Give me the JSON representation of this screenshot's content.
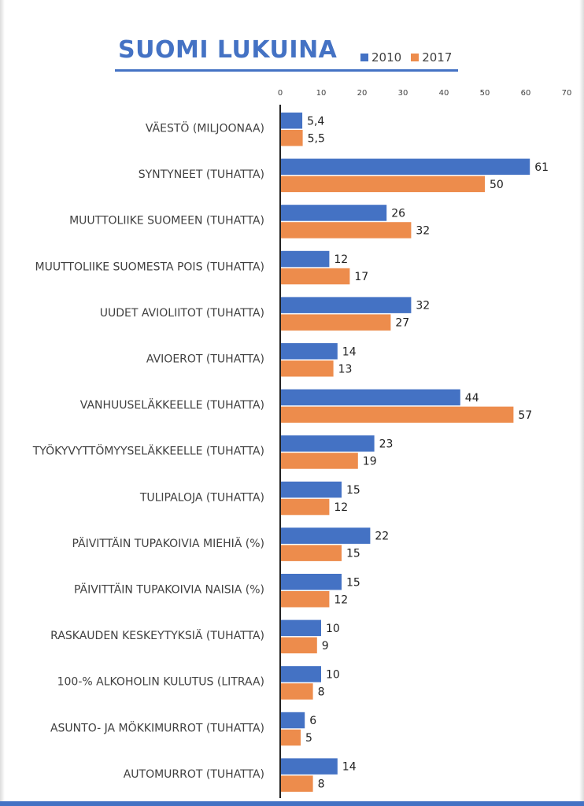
{
  "title": "SUOMI LUKUINA",
  "colors": {
    "s2010": "#4472c4",
    "s2017": "#ed8c4c",
    "title": "#4472c4"
  },
  "chart_data": {
    "type": "bar",
    "orientation": "horizontal",
    "title": "SUOMI LUKUINA",
    "xlim": [
      0,
      70
    ],
    "x_ticks": [
      0,
      10,
      20,
      30,
      40,
      50,
      60,
      70
    ],
    "legend_position": "top-right",
    "grid": false,
    "categories": [
      "VÄESTÖ (MILJOONAA)",
      "SYNTYNEET (TUHATTA)",
      "MUUTTOLIIKE SUOMEEN (TUHATTA)",
      "MUUTTOLIIKE SUOMESTA POIS (TUHATTA)",
      "UUDET AVIOLIITOT (TUHATTA)",
      "AVIOEROT (TUHATTA)",
      "VANHUUSELÄKKEELLE (TUHATTA)",
      "TYÖKYVYTTÖMYYSELÄKKEELLE  (TUHATTA)",
      "TULIPALOJA (TUHATTA)",
      "PÄIVITTÄIN TUPAKOIVIA MIEHIÄ (%)",
      "PÄIVITTÄIN TUPAKOIVIA NAISIA (%)",
      "RASKAUDEN KESKEYTYKSIÄ (TUHATTA)",
      "100-% ALKOHOLIN KULUTUS (LITRAA)",
      "ASUNTO- JA MÖKKIMURROT (TUHATTA)",
      "AUTOMURROT (TUHATTA)"
    ],
    "series": [
      {
        "name": "2010",
        "values": [
          5.4,
          61,
          26,
          12,
          32,
          14,
          44,
          23,
          15,
          22,
          15,
          10,
          10,
          6,
          14
        ],
        "labels": [
          "5,4",
          "61",
          "26",
          "12",
          "32",
          "14",
          "44",
          "23",
          "15",
          "22",
          "15",
          "10",
          "10",
          "6",
          "14"
        ]
      },
      {
        "name": "2017",
        "values": [
          5.5,
          50,
          32,
          17,
          27,
          13,
          57,
          19,
          12,
          15,
          12,
          9,
          8,
          5,
          8
        ],
        "labels": [
          "5,5",
          "50",
          "32",
          "17",
          "27",
          "13",
          "57",
          "19",
          "12",
          "15",
          "12",
          "9",
          "8",
          "5",
          "8"
        ]
      }
    ]
  }
}
